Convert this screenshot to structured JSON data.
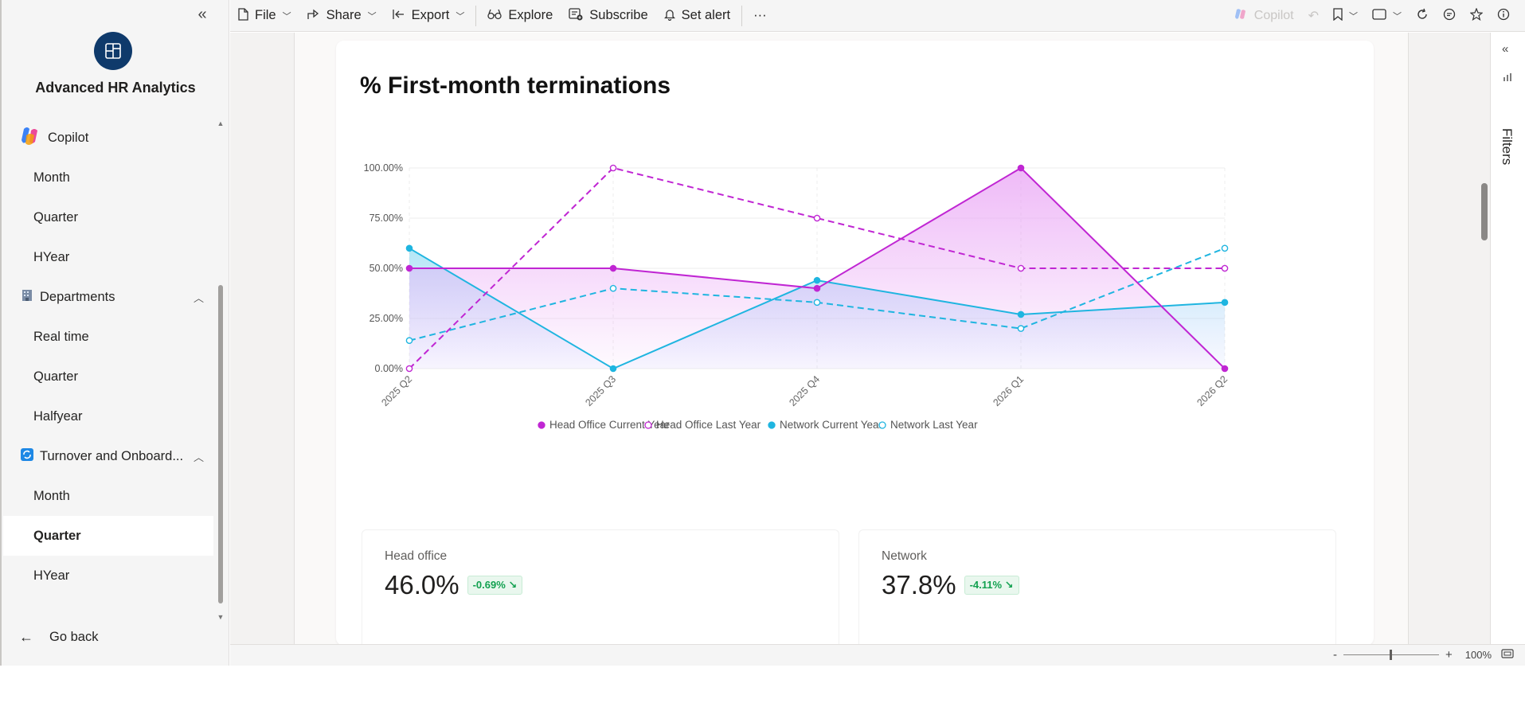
{
  "nav": {
    "app_title": "Advanced HR Analytics",
    "items": [
      {
        "label": "Copilot",
        "kind": "top"
      },
      {
        "label": "Month",
        "kind": "sub"
      },
      {
        "label": "Quarter",
        "kind": "sub"
      },
      {
        "label": "HYear",
        "kind": "sub"
      },
      {
        "label": "Departments",
        "kind": "section"
      },
      {
        "label": "Real time",
        "kind": "sub"
      },
      {
        "label": "Quarter",
        "kind": "sub"
      },
      {
        "label": "Halfyear",
        "kind": "sub"
      },
      {
        "label": "Turnover and Onboard...",
        "kind": "section"
      },
      {
        "label": "Month",
        "kind": "sub"
      },
      {
        "label": "Quarter",
        "kind": "sub",
        "selected": true
      },
      {
        "label": "HYear",
        "kind": "sub"
      }
    ],
    "go_back": "Go back"
  },
  "toolbar": {
    "file": "File",
    "share": "Share",
    "export": "Export",
    "explore": "Explore",
    "subscribe": "Subscribe",
    "set_alert": "Set alert",
    "more": "···",
    "copilot": "Copilot"
  },
  "filters": {
    "label": "Filters"
  },
  "status": {
    "zoom": "100%"
  },
  "kpis": [
    {
      "label": "Head office",
      "value": "46.0%",
      "delta": "-0.69% ↘"
    },
    {
      "label": "Network",
      "value": "37.8%",
      "delta": "-4.11% ↘"
    }
  ],
  "colors": {
    "head_office": "#c026d3",
    "network": "#1fb5e0",
    "kpi_good": "#12a150"
  },
  "chart_data": {
    "type": "line",
    "title": "% First-month terminations",
    "categories": [
      "2025 Q2",
      "2025 Q3",
      "2025 Q4",
      "2026 Q1",
      "2026 Q2"
    ],
    "y_ticks": [
      "0.00%",
      "25.00%",
      "50.00%",
      "75.00%",
      "100.00%"
    ],
    "ylim": [
      0,
      100
    ],
    "legend_position": "bottom",
    "series": [
      {
        "name": "Head Office Current Year",
        "values": [
          50,
          50,
          40,
          100,
          0
        ],
        "style": "solid",
        "marker": "filled",
        "area": true,
        "color": "#c026d3"
      },
      {
        "name": "Head Office Last Year",
        "values": [
          0,
          100,
          75,
          50,
          50
        ],
        "style": "dashed",
        "marker": "hollow",
        "area": false,
        "color": "#c026d3"
      },
      {
        "name": "Network Current Year",
        "values": [
          60,
          0,
          44,
          27,
          33
        ],
        "style": "solid",
        "marker": "filled",
        "area": true,
        "color": "#1fb5e0"
      },
      {
        "name": "Network Last Year",
        "values": [
          14,
          40,
          33,
          20,
          60
        ],
        "style": "dashed",
        "marker": "hollow",
        "area": false,
        "color": "#1fb5e0"
      }
    ]
  }
}
